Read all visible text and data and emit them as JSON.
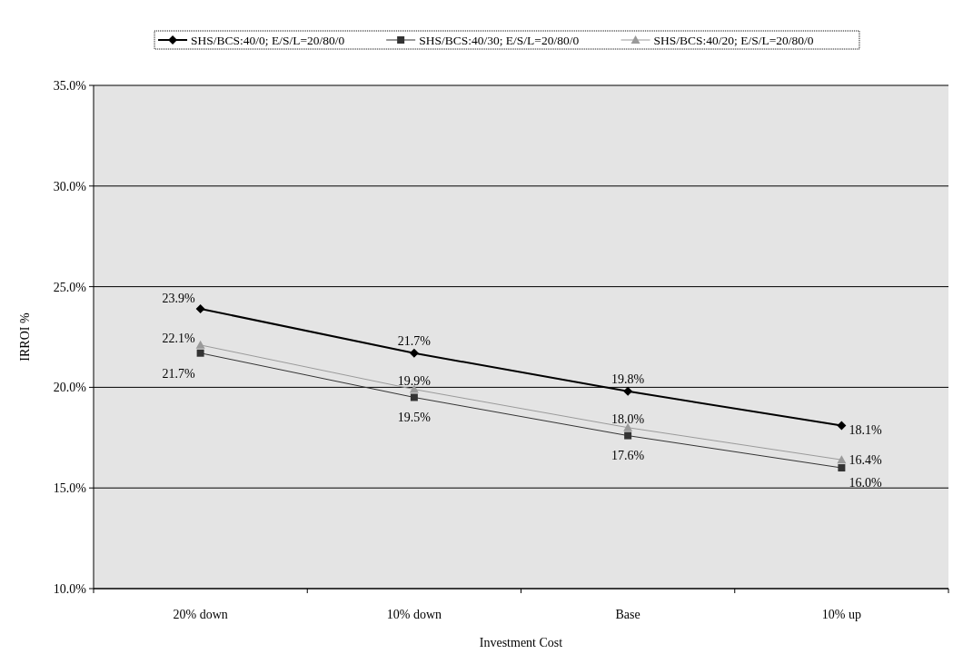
{
  "chart_data": {
    "type": "line",
    "xlabel": "Investment Cost",
    "ylabel": "IRROI %",
    "categories": [
      "20% down",
      "10% down",
      "Base",
      "10% up"
    ],
    "series": [
      {
        "name": "SHS/BCS:40/0; E/S/L=20/80/0",
        "color": "#000000",
        "marker": "diamond",
        "values": [
          23.9,
          21.7,
          19.8,
          18.1
        ],
        "value_labels": [
          "23.9%",
          "21.7%",
          "19.8%",
          "18.1%"
        ]
      },
      {
        "name": "SHS/BCS:40/30; E/S/L=20/80/0",
        "color": "#333333",
        "marker": "square",
        "values": [
          21.7,
          19.5,
          17.6,
          16.0
        ],
        "value_labels": [
          "21.7%",
          "19.5%",
          "17.6%",
          "16.0%"
        ]
      },
      {
        "name": "SHS/BCS:40/20; E/S/L=20/80/0",
        "color": "#9a9a9a",
        "marker": "triangle",
        "values": [
          22.1,
          19.9,
          18.0,
          16.4
        ],
        "value_labels": [
          "22.1%",
          "19.9%",
          "18.0%",
          "16.4%"
        ]
      }
    ],
    "ylim": [
      10,
      35
    ],
    "yticks": [
      {
        "value": 10,
        "label": "10.0%"
      },
      {
        "value": 15,
        "label": "15.0%"
      },
      {
        "value": 20,
        "label": "20.0%"
      },
      {
        "value": 25,
        "label": "25.0%"
      },
      {
        "value": 30,
        "label": "30.0%"
      },
      {
        "value": 35,
        "label": "35.0%"
      }
    ],
    "grid": "y",
    "legend": "top"
  }
}
